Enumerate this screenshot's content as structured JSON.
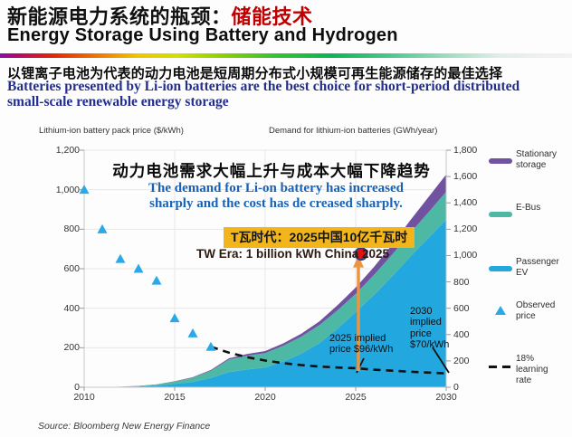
{
  "header": {
    "title_zh_black": "新能源电力系统的瓶颈：",
    "title_zh_red": "储能技术",
    "title_en": "Energy Storage Using Battery and Hydrogen"
  },
  "banner": {
    "line_zh": "以锂离子电池为代表的动力电池是短周期分布式小规模可再生能源储存的最佳选择",
    "line_en_1": "Batteries presented  by Li-ion batteries are the best choice for short-period distributed",
    "line_en_2": "small-scale renewable energy storage"
  },
  "chart_data": {
    "type": "area",
    "title_zh": "动力电池需求大幅上升与成本大幅下降趋势",
    "subtitle_en_line1": "The demand for Li-on battery has increased",
    "subtitle_en_line2": "sharply and the cost has de creased sharply.",
    "grid": true,
    "legend_position": "right",
    "left_axis": {
      "title": "Lithium-ion battery pack price ($/kWh)",
      "ticks": [
        "1,200",
        "1,000",
        "800",
        "600",
        "400",
        "200",
        "0"
      ],
      "tick_values": [
        1200,
        1000,
        800,
        600,
        400,
        200,
        0
      ],
      "range": [
        0,
        1200
      ]
    },
    "right_axis": {
      "title": "Demand for lithium-ion batteries (GWh/year)",
      "ticks": [
        "1,800",
        "1,600",
        "1,400",
        "1,200",
        "1,000",
        "800",
        "600",
        "400",
        "200",
        "0"
      ],
      "tick_values": [
        1800,
        1600,
        1400,
        1200,
        1000,
        800,
        600,
        400,
        200,
        0
      ],
      "range": [
        0,
        1800
      ]
    },
    "x_axis": {
      "ticks": [
        "2010",
        "2015",
        "2020",
        "2025",
        "2030"
      ],
      "tick_values": [
        2010,
        2015,
        2020,
        2025,
        2030
      ],
      "range": [
        2010,
        2030
      ]
    },
    "years": [
      2010,
      2011,
      2012,
      2013,
      2014,
      2015,
      2016,
      2017,
      2018,
      2019,
      2020,
      2021,
      2022,
      2023,
      2024,
      2025,
      2026,
      2027,
      2028,
      2029,
      2030
    ],
    "series": [
      {
        "name": "Passenger EV",
        "axis": "right",
        "color": "#22a7df",
        "values": [
          0,
          1,
          3,
          6,
          12,
          25,
          40,
          70,
          115,
          135,
          150,
          195,
          255,
          335,
          445,
          570,
          700,
          840,
          990,
          1130,
          1270
        ]
      },
      {
        "name": "E-Bus",
        "axis": "right",
        "color": "#4db9a4",
        "values": [
          0,
          0,
          1,
          3,
          8,
          18,
          32,
          55,
          95,
          105,
          110,
          120,
          130,
          138,
          140,
          140,
          152,
          165,
          180,
          195,
          215
        ]
      },
      {
        "name": "Stationary storage",
        "axis": "right",
        "color": "#7152a0",
        "values": [
          0,
          0,
          0,
          1,
          1,
          2,
          4,
          6,
          10,
          12,
          15,
          18,
          22,
          28,
          38,
          48,
          60,
          75,
          95,
          115,
          130
        ]
      }
    ],
    "observed_price": {
      "name": "Observed price",
      "axis": "left",
      "color": "#2aa9e8",
      "years": [
        2010,
        2011,
        2012,
        2013,
        2014,
        2015,
        2016,
        2017
      ],
      "values": [
        1000,
        800,
        650,
        600,
        540,
        350,
        273,
        205
      ]
    },
    "learning_rate_line": {
      "name": "18% learning rate",
      "axis": "left",
      "color": "#111111",
      "years": [
        2017,
        2018,
        2019,
        2020,
        2021,
        2022,
        2023,
        2024,
        2025,
        2026,
        2027,
        2028,
        2029,
        2030
      ],
      "values": [
        205,
        175,
        152,
        135,
        122,
        112,
        105,
        100,
        96,
        89,
        84,
        79,
        74,
        70
      ]
    },
    "milestone_point": {
      "year": 2025.3,
      "price_axis_value": 675
    }
  },
  "annotations": {
    "milestone_zh": "T瓦时代：2025中国10亿千瓦时",
    "milestone_en": "TW Era:  1 billion kWh China 2025",
    "implied_2025_line1": "2025 implied",
    "implied_2025_line2": "price $96/kWh",
    "implied_2030_line1": "2030",
    "implied_2030_line2": "implied",
    "implied_2030_line3": "price",
    "implied_2030_line4": "$70/kWh"
  },
  "legend": {
    "items": [
      {
        "label": "Stationary storage",
        "swatch": "line",
        "color": "#7152a0"
      },
      {
        "label": "E-Bus",
        "swatch": "line",
        "color": "#4db9a4"
      },
      {
        "label": "Passenger EV",
        "swatch": "line",
        "color": "#22a7df"
      },
      {
        "label": "Observed price",
        "swatch": "triangle",
        "color": "#2aa9e8"
      },
      {
        "label": "18% learning rate",
        "swatch": "dashed",
        "color": "#111111"
      }
    ]
  },
  "source": "Source: Bloomberg New Energy Finance",
  "colors": {
    "title_accent_red": "#c00000",
    "banner_text_blue": "#232e8e",
    "chart_subtitle_blue": "#1762b8",
    "milestone_box_bg": "#f2b61c",
    "milestone_en_text": "#2b1a10",
    "arrow_orange": "#ec9440",
    "dot_red": "#e31111",
    "dot_ring_navy": "#2c3a7c"
  }
}
